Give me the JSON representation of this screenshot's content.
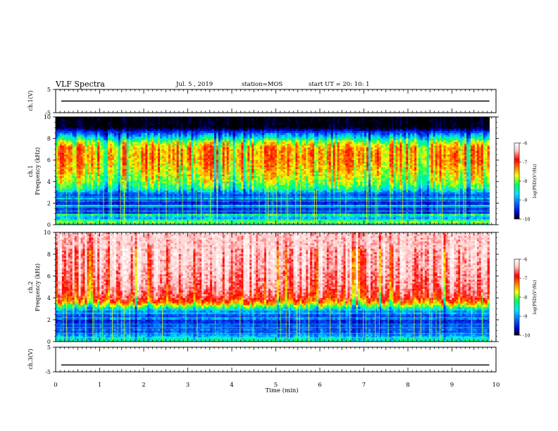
{
  "header": {
    "title": "VLF Spectra",
    "date": "Jul. 5 , 2019",
    "station": "station=MOS",
    "start": "start UT = 20: 10: 1"
  },
  "chart_data": [
    {
      "type": "line",
      "panel": "ch1-waveform",
      "ylabel": "ch.1(V)",
      "ylim": [
        -5,
        5
      ],
      "yticks": [
        "5",
        "-5"
      ],
      "xlim": [
        0,
        10
      ],
      "series_level": [
        0,
        0
      ]
    },
    {
      "type": "heatmap",
      "panel": "ch1-spectrogram",
      "ylabel_line1": "ch.1",
      "ylabel_line2": "Frequency (kHz)",
      "ylim": [
        0,
        10
      ],
      "yticks": [
        "0",
        "2",
        "4",
        "6",
        "8",
        "10"
      ],
      "xlim": [
        0,
        10
      ],
      "data_end_min": 9.85,
      "profile": [
        {
          "f": 0.0,
          "level": -8.3
        },
        {
          "f": 0.5,
          "level": -8.8
        },
        {
          "f": 1.0,
          "level": -9.4
        },
        {
          "f": 2.0,
          "level": -9.6
        },
        {
          "f": 2.8,
          "level": -9.3
        },
        {
          "f": 3.3,
          "level": -8.4
        },
        {
          "f": 4.0,
          "level": -7.9
        },
        {
          "f": 5.0,
          "level": -7.6
        },
        {
          "f": 6.0,
          "level": -7.4
        },
        {
          "f": 7.0,
          "level": -7.4
        },
        {
          "f": 7.6,
          "level": -7.8
        },
        {
          "f": 8.0,
          "level": -8.5
        },
        {
          "f": 8.6,
          "level": -9.5
        },
        {
          "f": 9.0,
          "level": -10.5
        },
        {
          "f": 10.0,
          "level": -10.5
        }
      ],
      "colorbar": {
        "label": "log(PSD)(V²/Hz)",
        "ticks": [
          "-6",
          "-7",
          "-8",
          "-9",
          "-10"
        ],
        "range": [
          -10,
          -6
        ]
      }
    },
    {
      "type": "heatmap",
      "panel": "ch2-spectrogram",
      "ylabel_line1": "ch.2",
      "ylabel_line2": "Frequency (kHz)",
      "ylim": [
        0,
        10
      ],
      "yticks": [
        "0",
        "2",
        "4",
        "6",
        "8",
        "10"
      ],
      "xlim": [
        0,
        10
      ],
      "data_end_min": 9.85,
      "profile": [
        {
          "f": 0.0,
          "level": -8.3
        },
        {
          "f": 0.5,
          "level": -8.9
        },
        {
          "f": 1.0,
          "level": -9.4
        },
        {
          "f": 2.0,
          "level": -9.6
        },
        {
          "f": 2.8,
          "level": -9.0
        },
        {
          "f": 3.2,
          "level": -8.1
        },
        {
          "f": 3.6,
          "level": -7.3
        },
        {
          "f": 4.0,
          "level": -6.9
        },
        {
          "f": 5.0,
          "level": -6.6
        },
        {
          "f": 7.0,
          "level": -6.4
        },
        {
          "f": 10.0,
          "level": -6.3
        }
      ],
      "colorbar": {
        "label": "log(PSD)(V²/Hz)",
        "ticks": [
          "-6",
          "-7",
          "-8",
          "-9",
          "-10"
        ],
        "range": [
          -10,
          -6
        ]
      }
    },
    {
      "type": "line",
      "panel": "ch3-waveform",
      "ylabel": "ch.3(V)",
      "ylim": [
        -5,
        5
      ],
      "yticks": [
        "5",
        "-5"
      ],
      "xlim": [
        0,
        10
      ],
      "series_level": [
        -2.2,
        -2.2
      ]
    }
  ],
  "xaxis": {
    "label": "Time (min)",
    "ticks": [
      "0",
      "1",
      "2",
      "3",
      "4",
      "5",
      "6",
      "7",
      "8",
      "9",
      "10"
    ]
  },
  "colors": {
    "colormap": [
      "#000000",
      "#0000c8",
      "#0064ff",
      "#00e6ff",
      "#00ff64",
      "#ffff00",
      "#ff7800",
      "#ff0000",
      "#ffc8c8",
      "#ffffff"
    ]
  }
}
